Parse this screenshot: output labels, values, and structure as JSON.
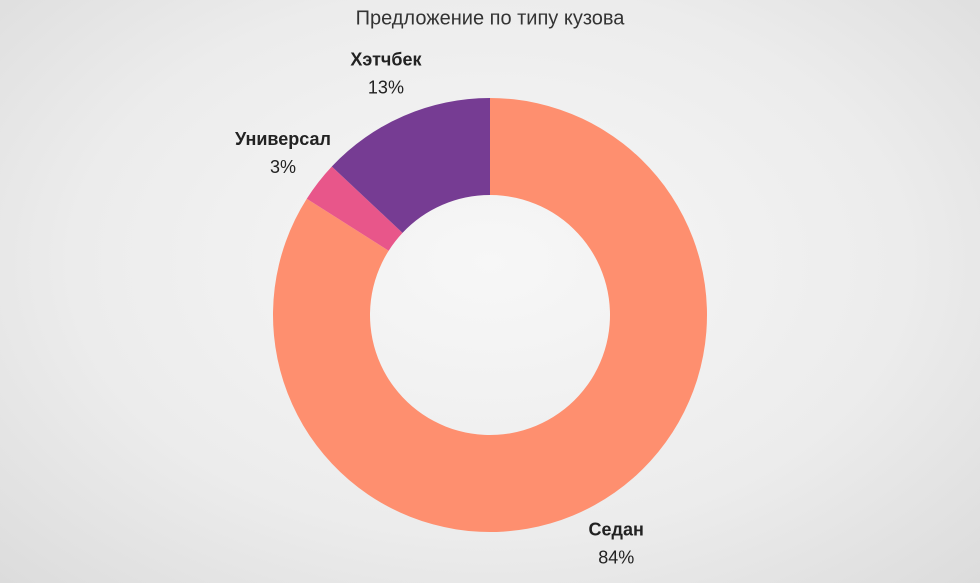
{
  "chart_data": {
    "type": "donut",
    "title": "Предложение по типу кузова",
    "categories": [
      "Седан",
      "Универсал",
      "Хэтчбек"
    ],
    "values": [
      84,
      3,
      13
    ],
    "value_labels": [
      "84%",
      "3%",
      "13%"
    ],
    "colors": [
      "#fe8f6f",
      "#e8568a",
      "#763c93"
    ]
  }
}
